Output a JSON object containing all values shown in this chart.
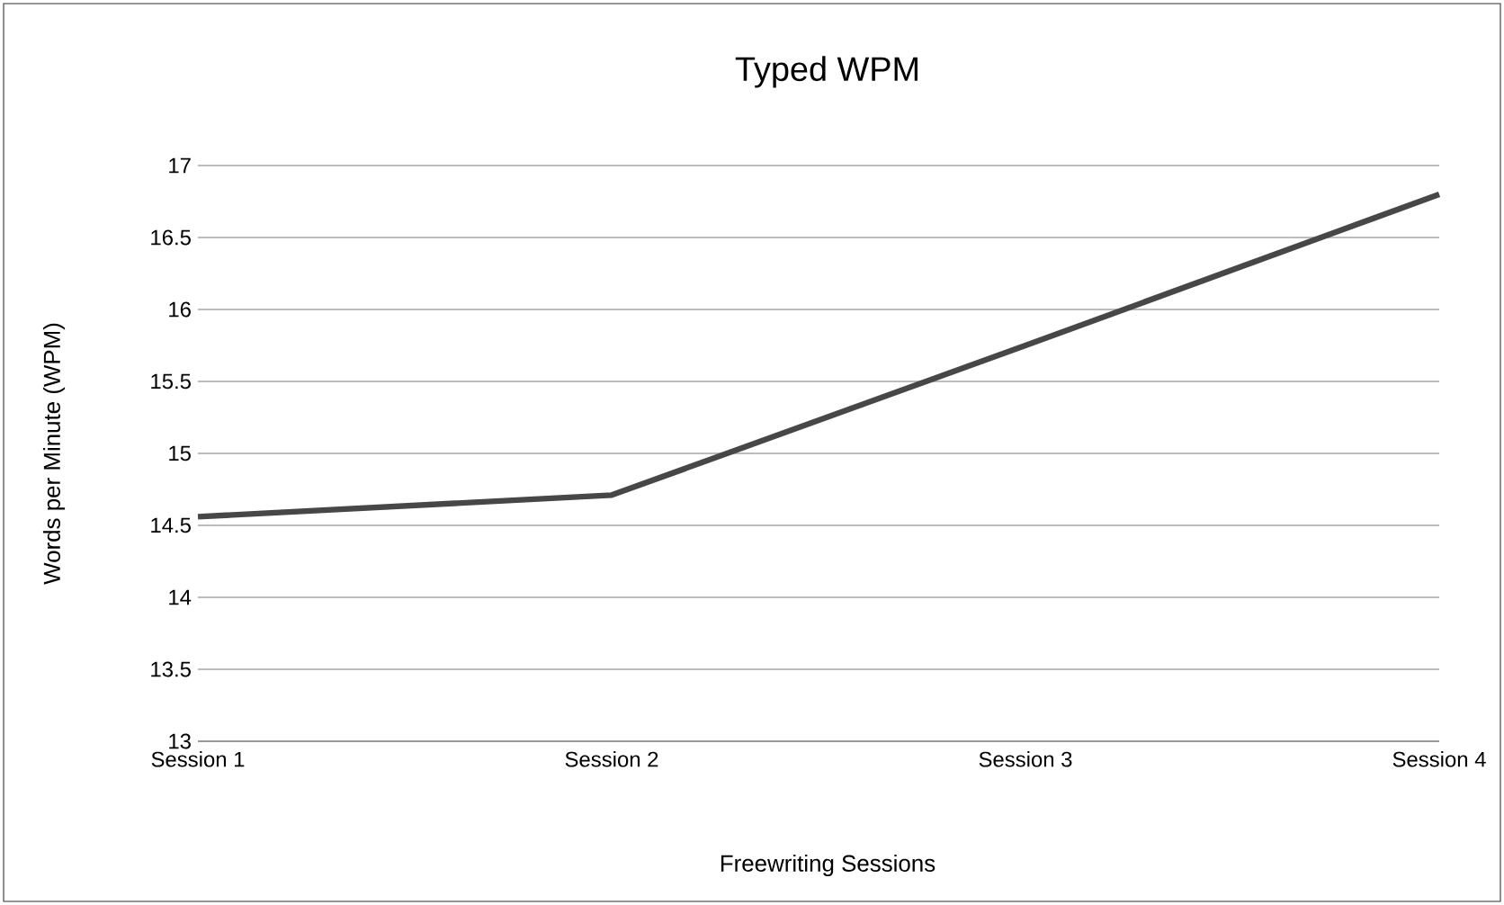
{
  "chart_data": {
    "type": "line",
    "title": "Typed WPM",
    "xlabel": "Freewriting Sessions",
    "ylabel": "Words per Minute (WPM)",
    "categories": [
      "Session 1",
      "Session 2",
      "Session 3",
      "Session 4"
    ],
    "series": [
      {
        "color": "#474747",
        "values": [
          14.56,
          14.71,
          15.75,
          16.8
        ]
      }
    ],
    "ylim": [
      13,
      17
    ],
    "yticks": [
      13,
      13.5,
      14,
      14.5,
      15,
      15.5,
      16,
      16.5,
      17
    ],
    "grid": "y",
    "marker": "none",
    "line_style": "solid"
  }
}
